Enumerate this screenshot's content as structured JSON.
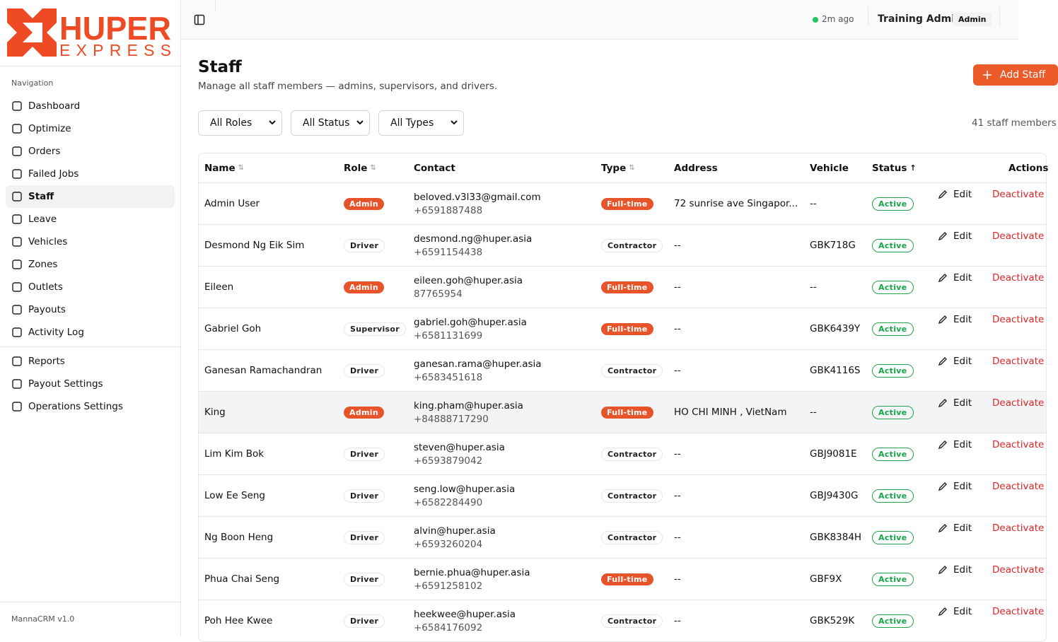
{
  "logo": {
    "brand": "HUPER",
    "sub": "EXPRESS"
  },
  "sidebar": {
    "heading": "Navigation",
    "nav": [
      "Dashboard",
      "Optimize",
      "Orders",
      "Failed Jobs",
      "Staff",
      "Leave",
      "Vehicles",
      "Zones",
      "Outlets",
      "Payouts",
      "Activity Log"
    ],
    "nav2": [
      "Reports",
      "Payout Settings",
      "Operations Settings"
    ],
    "footer": "MannaCRM v1.0"
  },
  "topbar": {
    "status": "2m ago",
    "user": "Training Admin",
    "role": "Admin"
  },
  "page": {
    "title": "Staff",
    "subtitle": "Manage all staff members — admins, supervisors, and drivers.",
    "add_button": "Add Staff",
    "filters": [
      "All Roles",
      "All Status",
      "All Types"
    ],
    "count": "41 staff members"
  },
  "table": {
    "columns": [
      "Name",
      "Role",
      "Contact",
      "Type",
      "Address",
      "Vehicle",
      "Status",
      "Actions"
    ],
    "actions": {
      "edit": "Edit",
      "deactivate": "Deactivate"
    },
    "rows": [
      [
        "Admin User",
        "Admin",
        "beloved.v3l33@gmail.com",
        "+6591887488",
        "Full-time",
        "72 sunrise ave Singapor...",
        "--",
        "Active"
      ],
      [
        "Desmond Ng Eik Sim",
        "Driver",
        "desmond.ng@huper.asia",
        "+6591154438",
        "Contractor",
        "--",
        "GBK718G",
        "Active"
      ],
      [
        "Eileen",
        "Admin",
        "eileen.goh@huper.asia",
        "87765954",
        "Full-time",
        "--",
        "--",
        "Active"
      ],
      [
        "Gabriel Goh",
        "Supervisor",
        "gabriel.goh@huper.asia",
        "+6581131699",
        "Full-time",
        "--",
        "GBK6439Y",
        "Active"
      ],
      [
        "Ganesan Ramachandran",
        "Driver",
        "ganesan.rama@huper.asia",
        "+6583451618",
        "Contractor",
        "--",
        "GBK4116S",
        "Active"
      ],
      [
        "King",
        "Admin",
        "king.pham@huper.asia",
        "+84888717290",
        "Full-time",
        "HO CHI MINH , VietNam",
        "--",
        "Active"
      ],
      [
        "Lim Kim Bok",
        "Driver",
        "steven@huper.asia",
        "+6593879042",
        "Contractor",
        "--",
        "GBJ9081E",
        "Active"
      ],
      [
        "Low Ee Seng",
        "Driver",
        "seng.low@huper.asia",
        "+6582284490",
        "Contractor",
        "--",
        "GBJ9430G",
        "Active"
      ],
      [
        "Ng Boon Heng",
        "Driver",
        "alvin@huper.asia",
        "+6593260204",
        "Contractor",
        "--",
        "GBK8384H",
        "Active"
      ],
      [
        "Phua Chai Seng",
        "Driver",
        "bernie.phua@huper.asia",
        "+6591258102",
        "Full-time",
        "--",
        "GBF9X",
        "Active"
      ],
      [
        "Poh Hee Kwee",
        "Driver",
        "heekwee@huper.asia",
        "+6584176092",
        "Contractor",
        "--",
        "GBK529K",
        "Active"
      ]
    ]
  }
}
